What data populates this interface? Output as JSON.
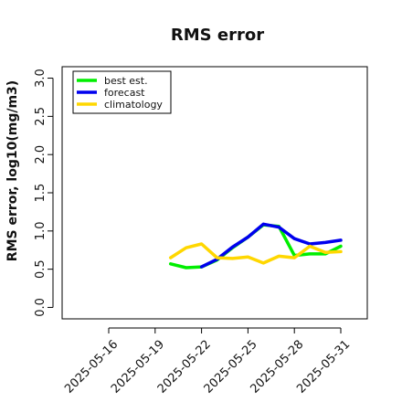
{
  "chart_data": {
    "type": "line",
    "title": "RMS error",
    "ylabel": "RMS error, log10(mg/m3)",
    "xlabel": "",
    "ylim": [
      -0.15,
      3.15
    ],
    "yticks": [
      0.0,
      0.5,
      1.0,
      1.5,
      2.0,
      2.5,
      3.0
    ],
    "ytick_labels": [
      "0.0",
      "0.5",
      "1.0",
      "1.5",
      "2.0",
      "2.5",
      "3.0"
    ],
    "x_dates": [
      "2025-05-14",
      "2025-05-15",
      "2025-05-16",
      "2025-05-17",
      "2025-05-18",
      "2025-05-19",
      "2025-05-20",
      "2025-05-21",
      "2025-05-22",
      "2025-05-23",
      "2025-05-24",
      "2025-05-25",
      "2025-05-26",
      "2025-05-27",
      "2025-05-28",
      "2025-05-29",
      "2025-05-30",
      "2025-05-31",
      "2025-06-01"
    ],
    "xticks": [
      "2025-05-16",
      "2025-05-19",
      "2025-05-22",
      "2025-05-25",
      "2025-05-28",
      "2025-05-31"
    ],
    "highlight_tick": "2025-05-22",
    "highlight_color": "#228b22",
    "series": [
      {
        "name": "best est.",
        "color": "#00ee00",
        "points": [
          [
            "2025-05-20",
            0.57
          ],
          [
            "2025-05-21",
            0.52
          ],
          [
            "2025-05-22",
            0.53
          ],
          [
            "2025-05-23",
            0.62
          ],
          [
            "2025-05-24",
            0.78
          ],
          [
            "2025-05-25",
            0.92
          ],
          [
            "2025-05-26",
            1.08
          ],
          [
            "2025-05-27",
            1.06
          ],
          [
            "2025-05-28",
            0.68
          ],
          [
            "2025-05-29",
            0.7
          ],
          [
            "2025-05-30",
            0.7
          ],
          [
            "2025-05-31",
            0.8
          ]
        ]
      },
      {
        "name": "forecast",
        "color": "#0000ee",
        "points": [
          [
            "2025-05-22",
            0.53
          ],
          [
            "2025-05-23",
            0.63
          ],
          [
            "2025-05-24",
            0.79
          ],
          [
            "2025-05-25",
            0.92
          ],
          [
            "2025-05-26",
            1.09
          ],
          [
            "2025-05-27",
            1.05
          ],
          [
            "2025-05-28",
            0.9
          ],
          [
            "2025-05-29",
            0.83
          ],
          [
            "2025-05-30",
            0.85
          ],
          [
            "2025-05-31",
            0.88
          ]
        ]
      },
      {
        "name": "climatology",
        "color": "#ffd700",
        "points": [
          [
            "2025-05-20",
            0.65
          ],
          [
            "2025-05-21",
            0.78
          ],
          [
            "2025-05-22",
            0.83
          ],
          [
            "2025-05-23",
            0.65
          ],
          [
            "2025-05-24",
            0.64
          ],
          [
            "2025-05-25",
            0.66
          ],
          [
            "2025-05-26",
            0.58
          ],
          [
            "2025-05-27",
            0.67
          ],
          [
            "2025-05-28",
            0.65
          ],
          [
            "2025-05-29",
            0.8
          ],
          [
            "2025-05-30",
            0.72
          ],
          [
            "2025-05-31",
            0.73
          ]
        ]
      }
    ],
    "legend_position": "top-left",
    "grid": false
  }
}
